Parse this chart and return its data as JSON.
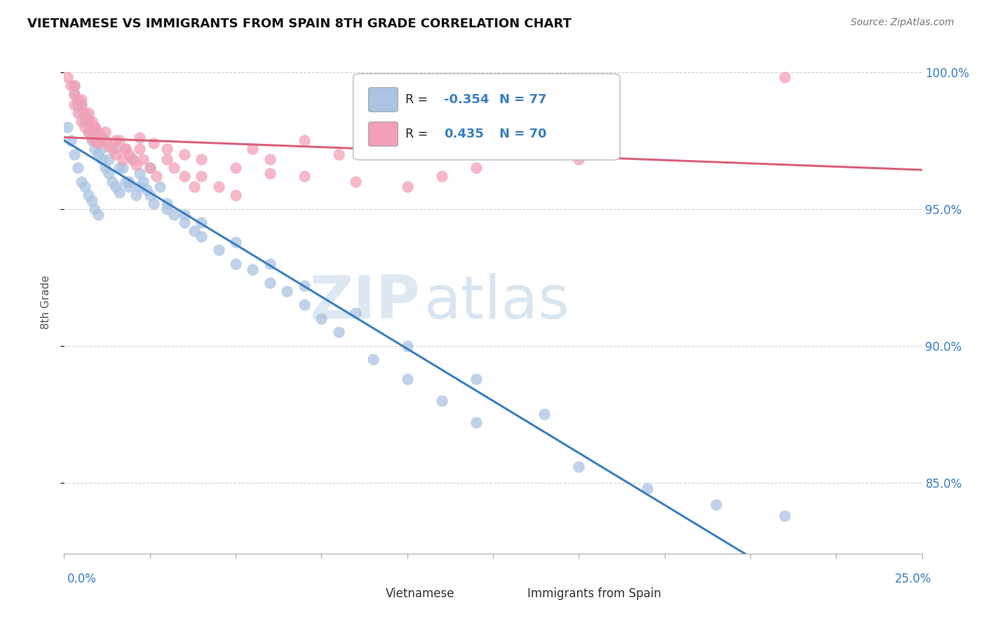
{
  "title": "VIETNAMESE VS IMMIGRANTS FROM SPAIN 8TH GRADE CORRELATION CHART",
  "source": "Source: ZipAtlas.com",
  "ylabel": "8th Grade",
  "xmin": 0.0,
  "xmax": 0.25,
  "ymin": 0.824,
  "ymax": 1.008,
  "yticks": [
    0.85,
    0.9,
    0.95,
    1.0
  ],
  "ytick_labels": [
    "85.0%",
    "90.0%",
    "95.0%",
    "100.0%"
  ],
  "r_vietnamese": -0.354,
  "n_vietnamese": 77,
  "r_spain": 0.435,
  "n_spain": 70,
  "blue_color": "#aac4e2",
  "pink_color": "#f2a0b5",
  "blue_line_color": "#3a7fc1",
  "pink_line_color": "#d9607a",
  "watermark_zip": "ZIP",
  "watermark_atlas": "atlas",
  "legend_label_blue": "Vietnamese",
  "legend_label_pink": "Immigrants from Spain",
  "blue_x": [
    0.001,
    0.002,
    0.003,
    0.003,
    0.004,
    0.004,
    0.005,
    0.005,
    0.006,
    0.006,
    0.007,
    0.007,
    0.008,
    0.008,
    0.009,
    0.009,
    0.01,
    0.01,
    0.011,
    0.012,
    0.013,
    0.014,
    0.015,
    0.015,
    0.016,
    0.017,
    0.018,
    0.019,
    0.02,
    0.021,
    0.022,
    0.023,
    0.024,
    0.025,
    0.026,
    0.028,
    0.03,
    0.032,
    0.035,
    0.038,
    0.04,
    0.045,
    0.05,
    0.055,
    0.06,
    0.065,
    0.07,
    0.075,
    0.08,
    0.09,
    0.1,
    0.11,
    0.12,
    0.15,
    0.17,
    0.19,
    0.21,
    0.003,
    0.005,
    0.007,
    0.009,
    0.011,
    0.013,
    0.016,
    0.019,
    0.022,
    0.025,
    0.03,
    0.035,
    0.04,
    0.05,
    0.06,
    0.07,
    0.085,
    0.1,
    0.12,
    0.14
  ],
  "blue_y": [
    0.98,
    0.975,
    0.992,
    0.97,
    0.988,
    0.965,
    0.985,
    0.96,
    0.982,
    0.958,
    0.978,
    0.955,
    0.975,
    0.953,
    0.972,
    0.95,
    0.97,
    0.948,
    0.968,
    0.965,
    0.963,
    0.96,
    0.958,
    0.972,
    0.956,
    0.965,
    0.96,
    0.958,
    0.968,
    0.955,
    0.963,
    0.96,
    0.957,
    0.965,
    0.952,
    0.958,
    0.95,
    0.948,
    0.945,
    0.942,
    0.94,
    0.935,
    0.93,
    0.928,
    0.923,
    0.92,
    0.915,
    0.91,
    0.905,
    0.895,
    0.888,
    0.88,
    0.872,
    0.856,
    0.848,
    0.842,
    0.838,
    0.995,
    0.988,
    0.982,
    0.978,
    0.972,
    0.968,
    0.965,
    0.96,
    0.958,
    0.955,
    0.952,
    0.948,
    0.945,
    0.938,
    0.93,
    0.922,
    0.912,
    0.9,
    0.888,
    0.875
  ],
  "pink_x": [
    0.001,
    0.002,
    0.003,
    0.003,
    0.004,
    0.004,
    0.005,
    0.005,
    0.006,
    0.006,
    0.007,
    0.007,
    0.008,
    0.008,
    0.009,
    0.009,
    0.01,
    0.01,
    0.011,
    0.012,
    0.013,
    0.014,
    0.015,
    0.016,
    0.017,
    0.018,
    0.019,
    0.02,
    0.021,
    0.022,
    0.023,
    0.025,
    0.027,
    0.03,
    0.032,
    0.035,
    0.038,
    0.04,
    0.045,
    0.05,
    0.055,
    0.06,
    0.07,
    0.08,
    0.09,
    0.1,
    0.11,
    0.12,
    0.15,
    0.21,
    0.003,
    0.005,
    0.007,
    0.009,
    0.012,
    0.015,
    0.018,
    0.022,
    0.026,
    0.03,
    0.035,
    0.04,
    0.05,
    0.06,
    0.07,
    0.085,
    0.1,
    0.11,
    0.12,
    0.15
  ],
  "pink_y": [
    0.998,
    0.995,
    0.992,
    0.988,
    0.99,
    0.985,
    0.988,
    0.982,
    0.985,
    0.98,
    0.983,
    0.978,
    0.982,
    0.976,
    0.98,
    0.975,
    0.978,
    0.974,
    0.976,
    0.975,
    0.973,
    0.972,
    0.97,
    0.975,
    0.968,
    0.972,
    0.97,
    0.968,
    0.966,
    0.972,
    0.968,
    0.965,
    0.962,
    0.968,
    0.965,
    0.962,
    0.958,
    0.962,
    0.958,
    0.955,
    0.972,
    0.968,
    0.975,
    0.97,
    0.978,
    0.975,
    0.98,
    0.978,
    0.982,
    0.998,
    0.995,
    0.99,
    0.985,
    0.98,
    0.978,
    0.975,
    0.972,
    0.976,
    0.974,
    0.972,
    0.97,
    0.968,
    0.965,
    0.963,
    0.962,
    0.96,
    0.958,
    0.962,
    0.965,
    0.968
  ]
}
